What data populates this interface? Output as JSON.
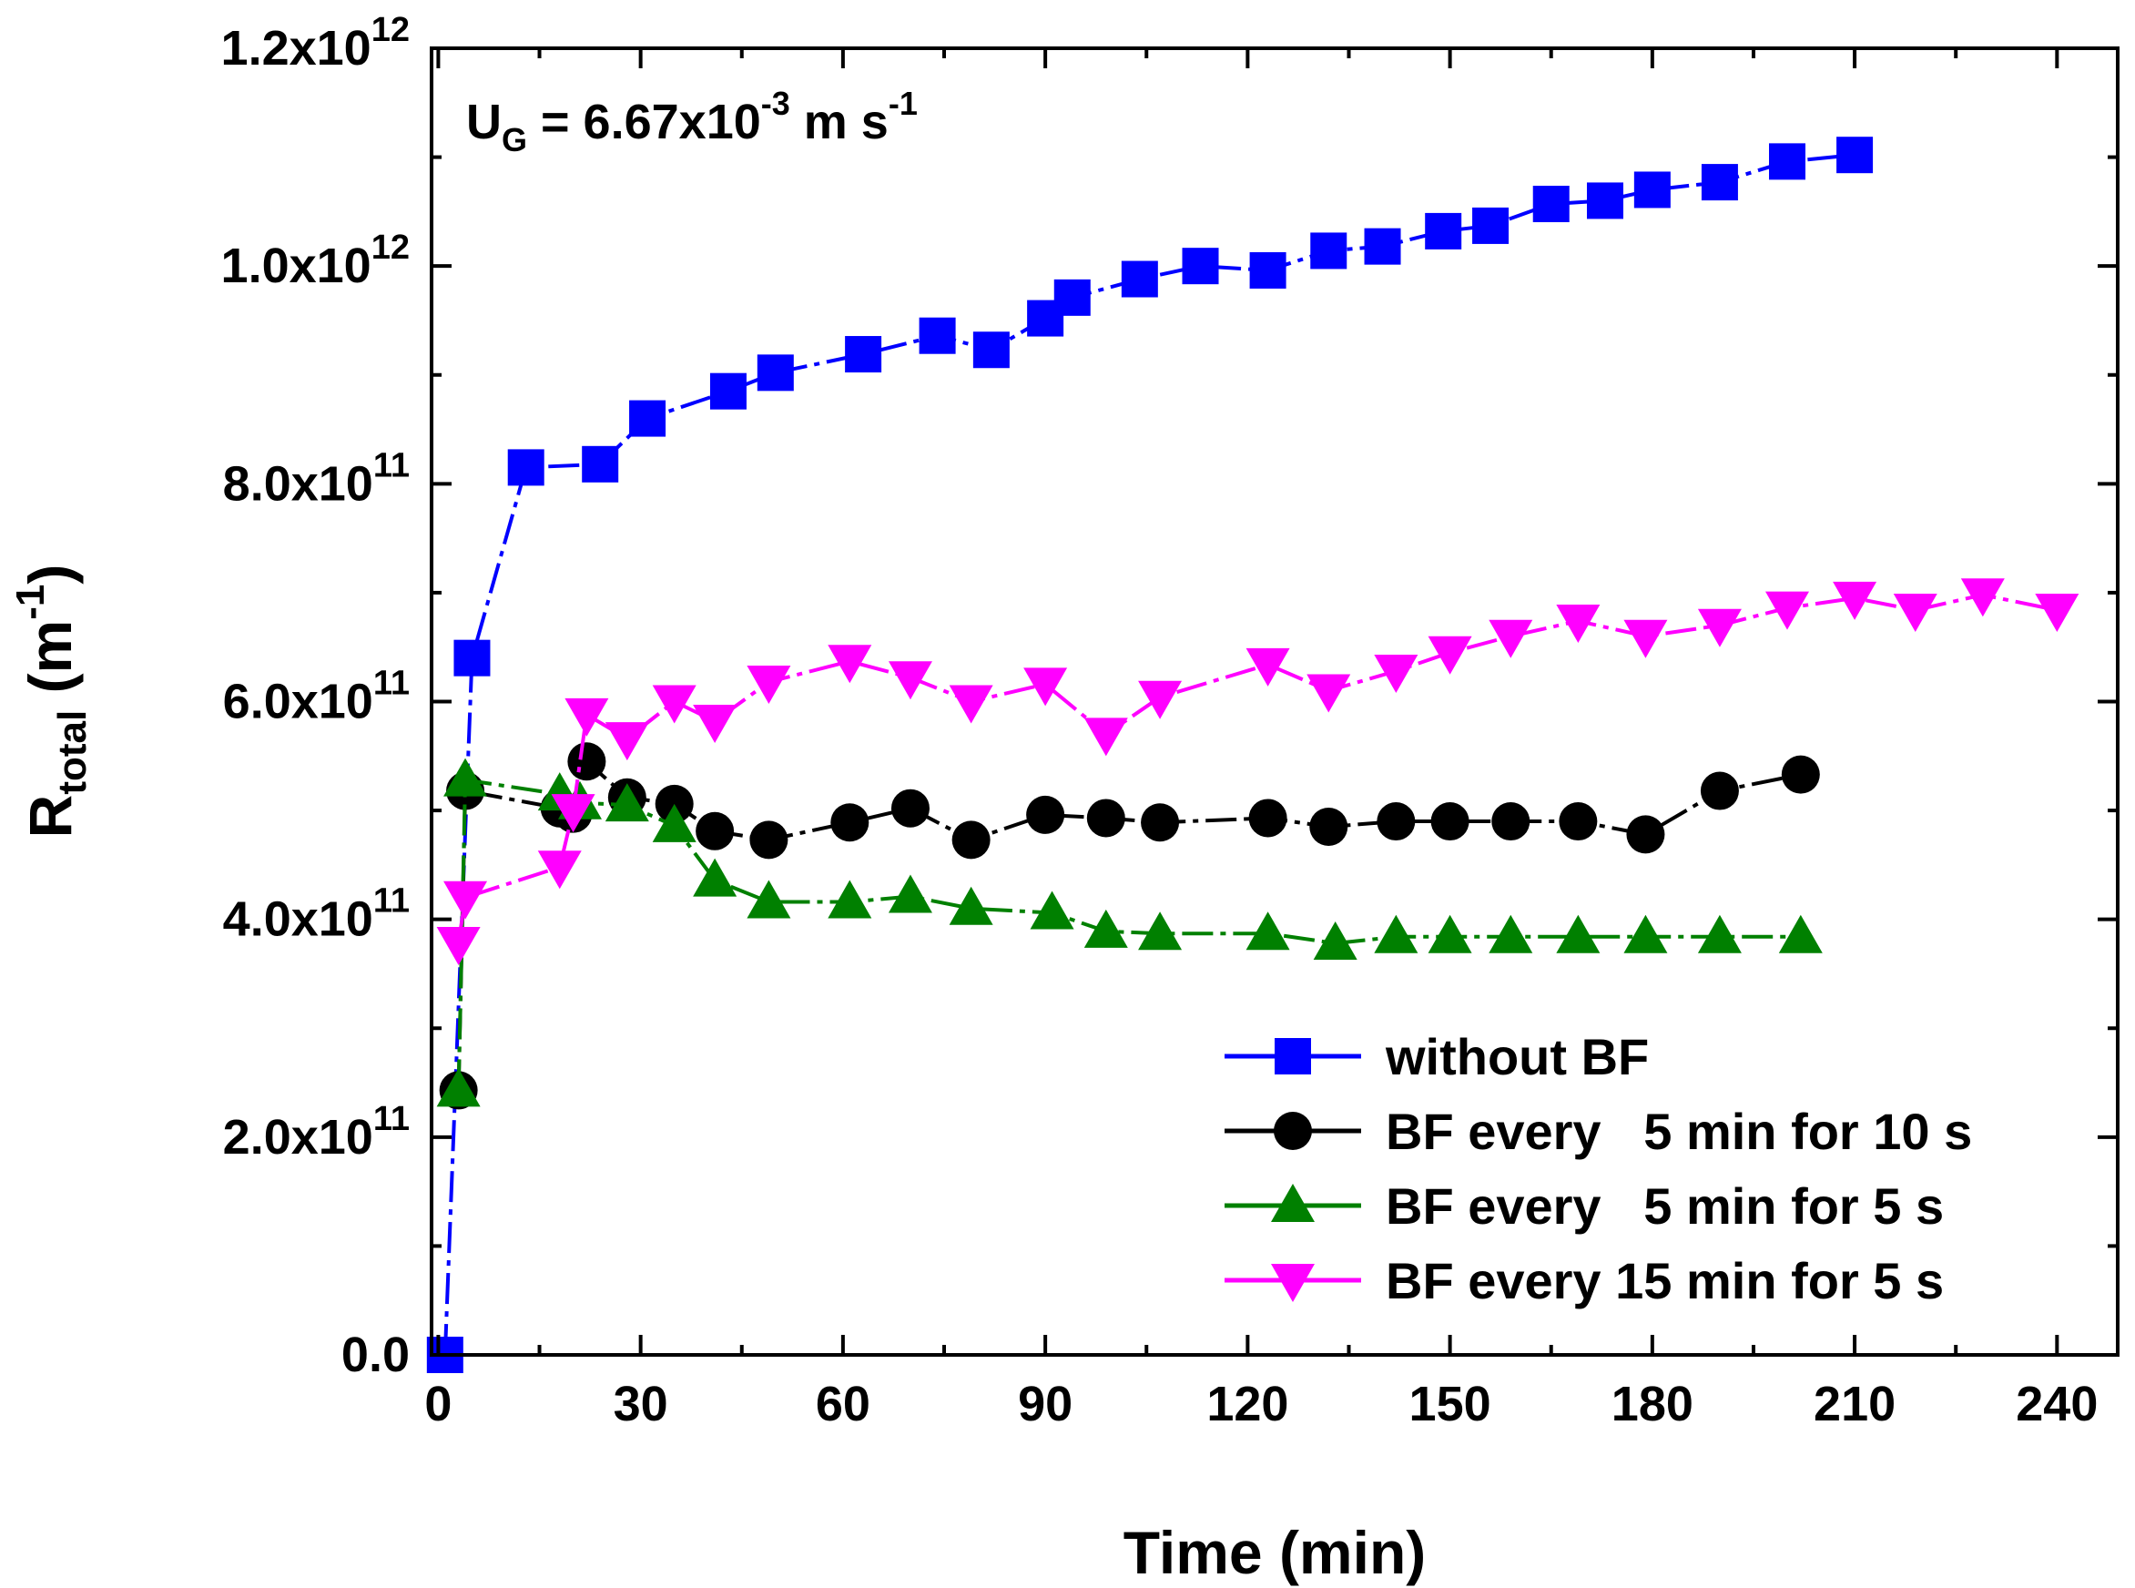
{
  "chart_data": {
    "type": "line",
    "title": "",
    "annotation": {
      "prefix": "U",
      "subscript": "G",
      "equals": " = 6.67x10",
      "exponent": "-3",
      "unit": " m s",
      "unit_exponent": "-1"
    },
    "xlabel": "Time (min)",
    "ylabel": {
      "base": "R",
      "subscript": "total",
      "unit_open": " (m",
      "unit_exponent": "-1",
      "unit_close": ")"
    },
    "xlim": [
      -1,
      249
    ],
    "ylim": [
      0,
      1200000000000.0
    ],
    "x_ticks": [
      0,
      30,
      60,
      90,
      120,
      150,
      180,
      210,
      240
    ],
    "x_tick_labels": [
      "0",
      "30",
      "60",
      "90",
      "120",
      "150",
      "180",
      "210",
      "240"
    ],
    "y_ticks": [
      {
        "value": 0,
        "mantissa": "0.0",
        "exponent": ""
      },
      {
        "value": 200000000000.0,
        "mantissa": "2.0x10",
        "exponent": "11"
      },
      {
        "value": 400000000000.0,
        "mantissa": "4.0x10",
        "exponent": "11"
      },
      {
        "value": 600000000000.0,
        "mantissa": "6.0x10",
        "exponent": "11"
      },
      {
        "value": 800000000000.0,
        "mantissa": "8.0x10",
        "exponent": "11"
      },
      {
        "value": 1000000000000.0,
        "mantissa": "1.0x10",
        "exponent": "12"
      },
      {
        "value": 1200000000000.0,
        "mantissa": "1.2x10",
        "exponent": "12"
      }
    ],
    "legend_position": "bottom-right",
    "series": [
      {
        "name": "without BF",
        "color": "#0000ff",
        "marker": "square",
        "x": [
          1,
          5,
          13,
          24,
          31,
          43,
          50,
          63,
          74,
          82,
          90,
          94,
          104,
          113,
          123,
          132,
          140,
          149,
          156,
          165,
          173,
          180,
          190,
          200,
          210
        ],
        "y": [
          0.0,
          640000000000.0,
          815000000000.0,
          818000000000.0,
          860000000000.0,
          885000000000.0,
          902000000000.0,
          919000000000.0,
          936000000000.0,
          923000000000.0,
          952000000000.0,
          971000000000.0,
          988000000000.0,
          1000000000000.0,
          996000000000.0,
          1014000000000.0,
          1018000000000.0,
          1032000000000.0,
          1037000000000.0,
          1057000000000.0,
          1060000000000.0,
          1070000000000.0,
          1077000000000.0,
          1096000000000.0,
          1102000000000.0
        ]
      },
      {
        "name": "BF every   5 min for 10 s",
        "color": "#000000",
        "marker": "circle",
        "x": [
          3,
          4,
          18,
          20,
          22,
          28,
          35,
          41,
          49,
          61,
          70,
          79,
          90,
          99,
          107,
          123,
          132,
          142,
          150,
          159,
          169,
          179,
          190,
          202
        ],
        "y": [
          243000000000.0,
          518000000000.0,
          502000000000.0,
          497000000000.0,
          545000000000.0,
          512000000000.0,
          506000000000.0,
          481000000000.0,
          473000000000.0,
          489000000000.0,
          502000000000.0,
          473000000000.0,
          496000000000.0,
          493000000000.0,
          489000000000.0,
          493000000000.0,
          485000000000.0,
          490000000000.0,
          490000000000.0,
          490000000000.0,
          490000000000.0,
          478000000000.0,
          518000000000.0,
          533000000000.0
        ]
      },
      {
        "name": "BF every   5 min for 5 s",
        "color": "#008000",
        "marker": "triangle-up",
        "x": [
          3,
          4,
          18,
          21,
          28,
          35,
          41,
          49,
          61,
          70,
          79,
          91,
          99,
          107,
          123,
          133,
          142,
          150,
          159,
          169,
          179,
          190,
          202
        ],
        "y": [
          243000000000.0,
          528000000000.0,
          515000000000.0,
          507000000000.0,
          505000000000.0,
          486000000000.0,
          436000000000.0,
          416000000000.0,
          416000000000.0,
          421000000000.0,
          410000000000.0,
          406000000000.0,
          389000000000.0,
          387000000000.0,
          387000000000.0,
          378000000000.0,
          384000000000.0,
          384000000000.0,
          384000000000.0,
          384000000000.0,
          384000000000.0,
          384000000000.0,
          384000000000.0
        ]
      },
      {
        "name": "BF every 15 min for 5 s",
        "color": "#ff00ff",
        "marker": "triangle-down",
        "x": [
          3,
          4,
          18,
          20,
          22,
          28,
          35,
          41,
          49,
          61,
          70,
          79,
          90,
          99,
          107,
          123,
          132,
          142,
          150,
          159,
          169,
          179,
          190,
          200,
          210,
          219,
          229,
          240
        ],
        "y": [
          378000000000.0,
          420000000000.0,
          448000000000.0,
          500000000000.0,
          588000000000.0,
          566000000000.0,
          600000000000.0,
          582000000000.0,
          618000000000.0,
          637000000000.0,
          622000000000.0,
          600000000000.0,
          616000000000.0,
          570000000000.0,
          604000000000.0,
          634000000000.0,
          610000000000.0,
          628000000000.0,
          645000000000.0,
          660000000000.0,
          674000000000.0,
          660000000000.0,
          670000000000.0,
          686000000000.0,
          695000000000.0,
          684000000000.0,
          698000000000.0,
          684000000000.0
        ]
      }
    ]
  }
}
